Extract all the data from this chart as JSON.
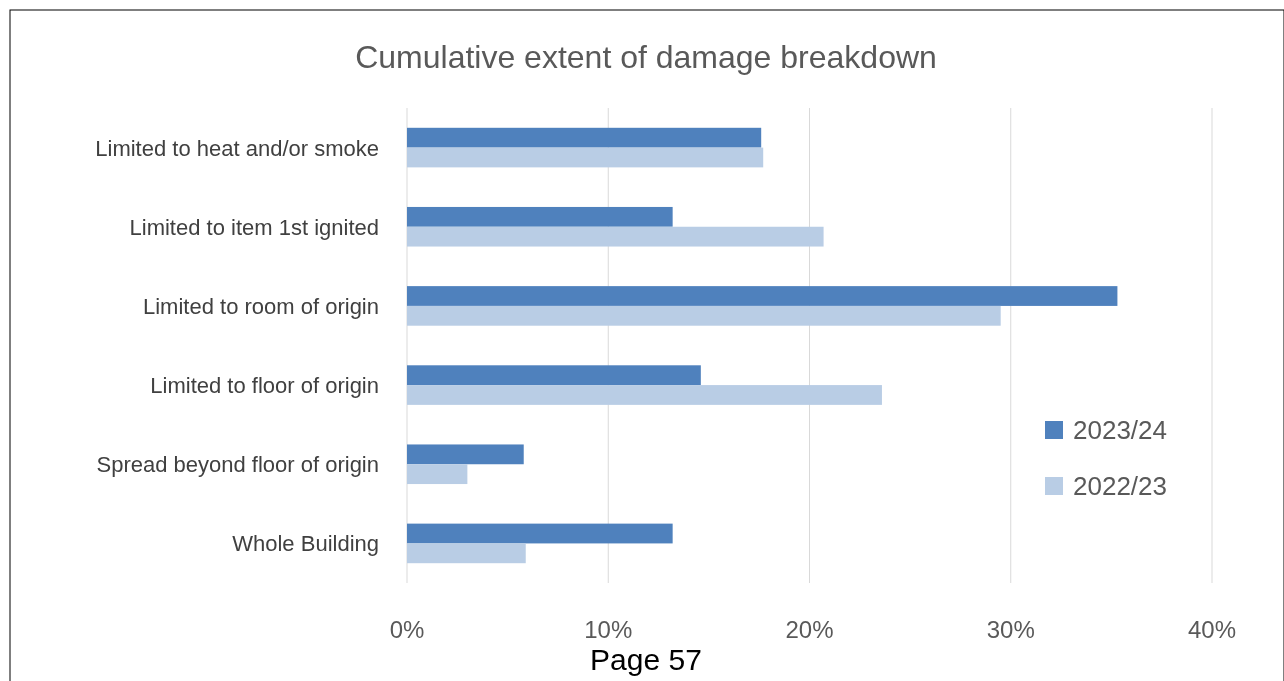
{
  "chart_data": {
    "type": "bar",
    "orientation": "horizontal",
    "title": "Cumulative extent of damage breakdown",
    "categories": [
      "Limited to heat and/or smoke",
      "Limited to item 1st ignited",
      "Limited to room of origin",
      "Limited to floor of origin",
      "Spread beyond floor of origin",
      "Whole Building"
    ],
    "series": [
      {
        "name": "2023/24",
        "color": "#4f81bd",
        "values": [
          17.6,
          13.2,
          35.3,
          14.6,
          5.8,
          13.2
        ]
      },
      {
        "name": "2022/23",
        "color": "#b9cde5",
        "values": [
          17.7,
          20.7,
          29.5,
          23.6,
          3.0,
          5.9
        ]
      }
    ],
    "xlim": [
      0,
      40
    ],
    "xticks": [
      {
        "value": 0,
        "label": "0%"
      },
      {
        "value": 10,
        "label": "10%"
      },
      {
        "value": 20,
        "label": "20%"
      },
      {
        "value": 30,
        "label": "30%"
      },
      {
        "value": 40,
        "label": "40%"
      }
    ],
    "grid": "x",
    "legend": "right",
    "annotations": [
      "Page 57"
    ]
  }
}
